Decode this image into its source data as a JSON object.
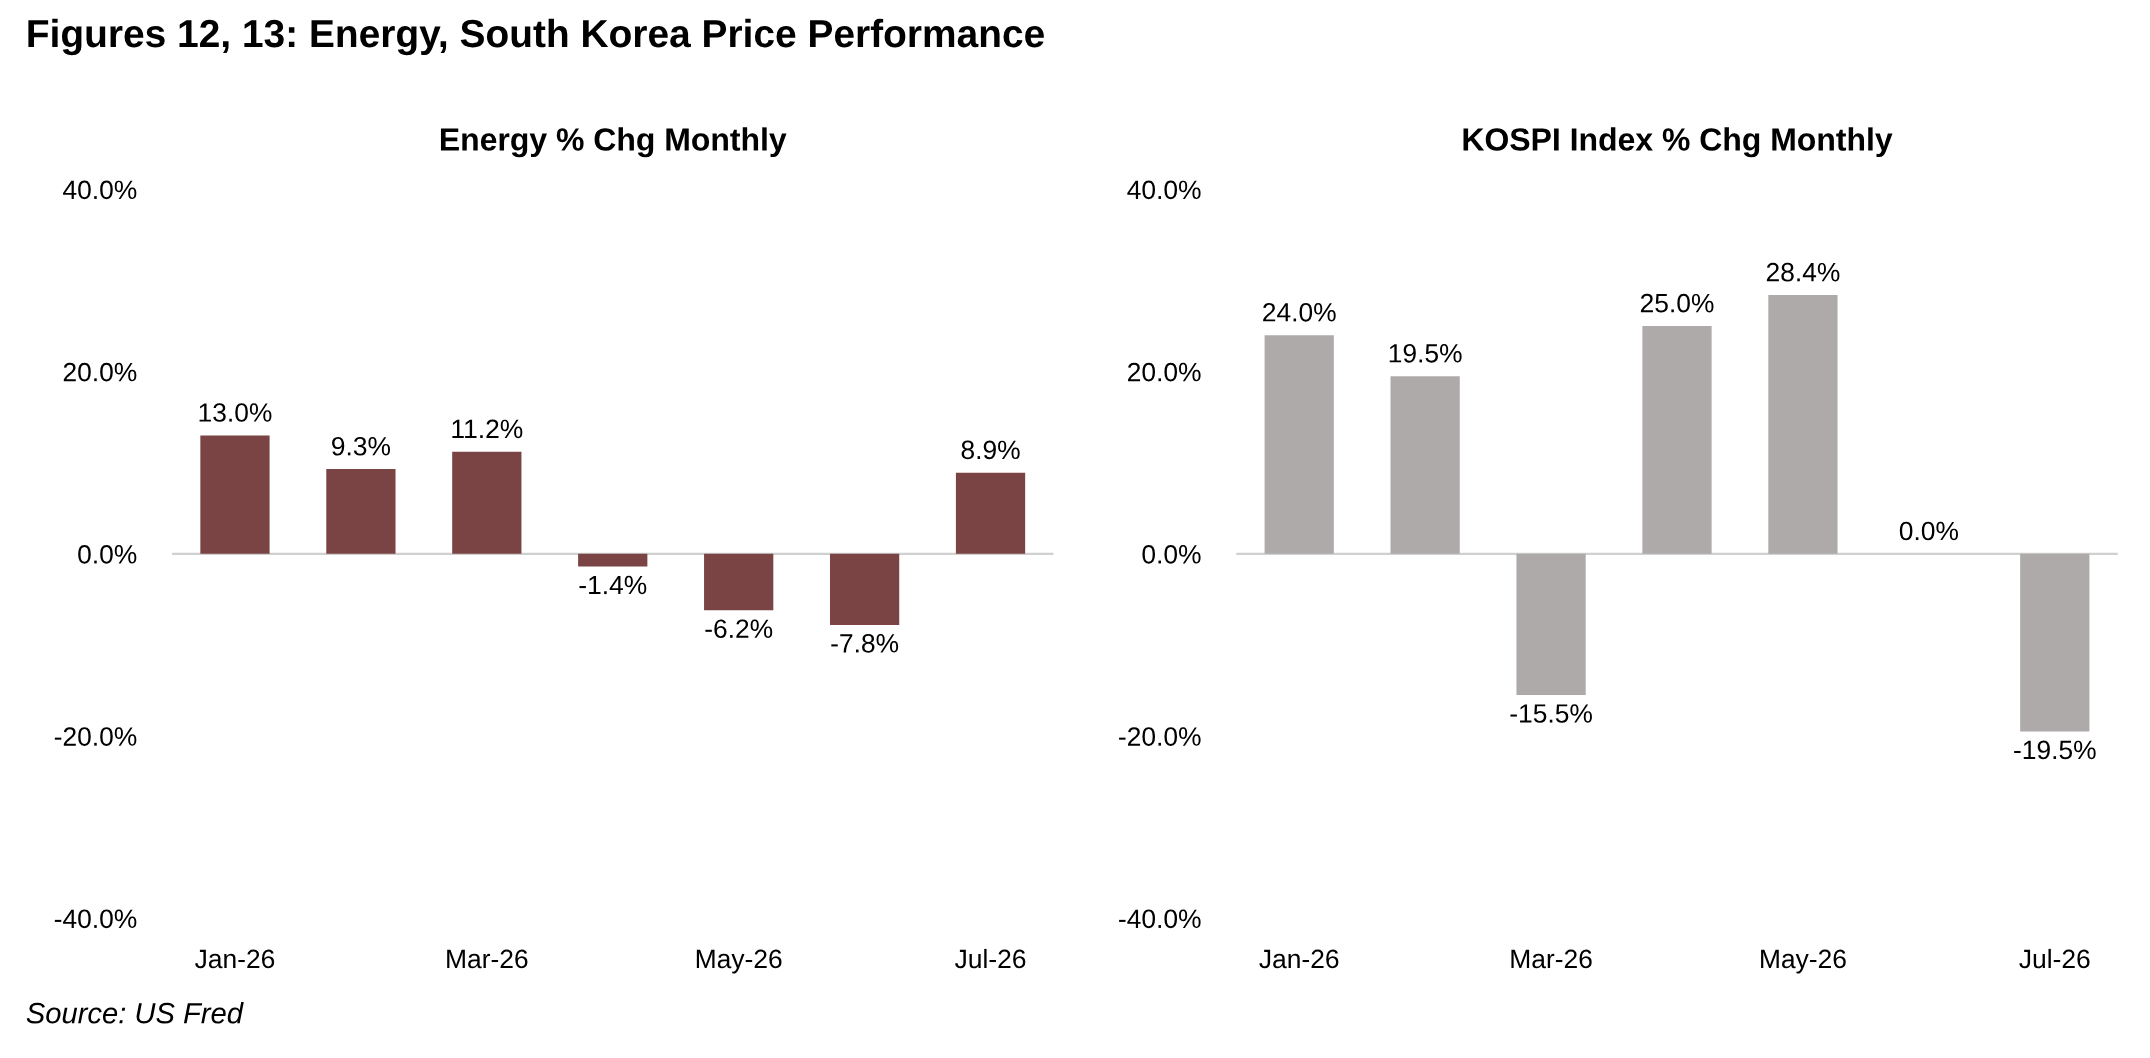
{
  "chart_data": [
    {
      "type": "bar",
      "title": "Energy % Chg Monthly",
      "categories": [
        "Jan-26",
        null,
        "Mar-26",
        null,
        "May-26",
        null,
        "Jul-26"
      ],
      "values": [
        13.0,
        9.3,
        11.2,
        -1.4,
        -6.2,
        -7.8,
        8.9
      ],
      "color": "#7b4444",
      "value_labels": [
        "13.0%",
        "9.3%",
        "11.2%",
        "-1.4%",
        "-6.2%",
        "-7.8%",
        "8.9%"
      ],
      "ylim": [
        -40,
        40
      ],
      "yticks": [
        {
          "value": -40,
          "label": "-40.0%"
        },
        {
          "value": -20,
          "label": "-20.0%"
        },
        {
          "value": 0,
          "label": "0.0%"
        },
        {
          "value": 20,
          "label": "20.0%"
        },
        {
          "value": 40,
          "label": "40.0%"
        }
      ],
      "grid": false,
      "legend": false,
      "ref_lines": [
        {
          "axis": "y",
          "value": 0,
          "color": "#d0d0d0"
        }
      ],
      "annotations": [
        "Figures 12, 13: Energy, South Korea Price Performance",
        "Source: US Fred"
      ]
    },
    {
      "type": "bar",
      "title": "KOSPI Index % Chg Monthly",
      "categories": [
        "Jan-26",
        null,
        "Mar-26",
        null,
        "May-26",
        null,
        "Jul-26"
      ],
      "values": [
        24.0,
        19.5,
        -15.5,
        25.0,
        28.4,
        0.0,
        -19.5
      ],
      "color": "#aeaaaa",
      "value_labels": [
        "24.0%",
        "19.5%",
        "-15.5%",
        "25.0%",
        "28.4%",
        "0.0%",
        "-19.5%"
      ],
      "ylim": [
        -40,
        40
      ],
      "yticks": [
        {
          "value": -40,
          "label": "-40.0%"
        },
        {
          "value": -20,
          "label": "-20.0%"
        },
        {
          "value": 0,
          "label": "0.0%"
        },
        {
          "value": 20,
          "label": "20.0%"
        },
        {
          "value": 40,
          "label": "40.0%"
        }
      ],
      "grid": false,
      "legend": false,
      "ref_lines": [
        {
          "axis": "y",
          "value": 0,
          "color": "#d0d0d0"
        }
      ]
    }
  ]
}
